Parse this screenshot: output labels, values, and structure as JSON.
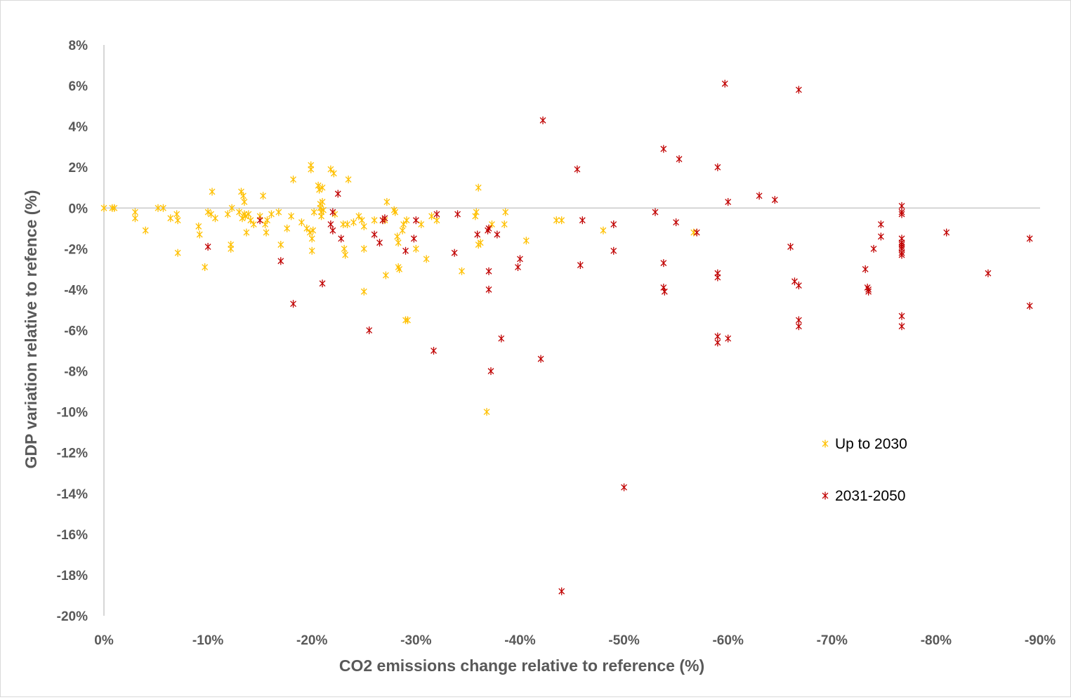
{
  "chart_data": {
    "type": "scatter",
    "xlabel": "CO2 emissions change relative to reference (%)",
    "ylabel": "GDP variation relative to refence (%)",
    "xlim": [
      0,
      -90
    ],
    "ylim": [
      -20,
      8
    ],
    "x_ticks": [
      0,
      -10,
      -20,
      -30,
      -40,
      -50,
      -60,
      -70,
      -80,
      -90
    ],
    "y_ticks": [
      8,
      6,
      4,
      2,
      0,
      -2,
      -4,
      -6,
      -8,
      -10,
      -12,
      -14,
      -16,
      -18,
      -20
    ],
    "x_tick_labels": [
      "0%",
      "-10%",
      "-20%",
      "-30%",
      "-40%",
      "-50%",
      "-60%",
      "-70%",
      "-80%",
      "-90%"
    ],
    "y_tick_labels": [
      "8%",
      "6%",
      "4%",
      "2%",
      "0%",
      "-2%",
      "-4%",
      "-6%",
      "-8%",
      "-10%",
      "-12%",
      "-14%",
      "-16%",
      "-18%",
      "-20%"
    ],
    "grid": false,
    "zero_line": true,
    "legend_position": "right",
    "series": [
      {
        "name": "Up to 2030",
        "color": "#FFC000",
        "marker": "asterisk",
        "points": [
          [
            0,
            0
          ],
          [
            0.8,
            0
          ],
          [
            1,
            0
          ],
          [
            3,
            -0.2
          ],
          [
            3,
            -0.5
          ],
          [
            4,
            -1.1
          ],
          [
            5.2,
            0
          ],
          [
            5.7,
            0
          ],
          [
            6.4,
            -0.5
          ],
          [
            7,
            -0.3
          ],
          [
            7.1,
            -0.6
          ],
          [
            7.1,
            -2.2
          ],
          [
            9.1,
            -0.9
          ],
          [
            9.2,
            -1.3
          ],
          [
            9.7,
            -2.9
          ],
          [
            10,
            -0.2
          ],
          [
            10.3,
            -0.3
          ],
          [
            10.4,
            0.8
          ],
          [
            10.7,
            -0.5
          ],
          [
            11.9,
            -0.3
          ],
          [
            12.2,
            -1.8
          ],
          [
            12.2,
            -2
          ],
          [
            12.3,
            0
          ],
          [
            13,
            -0.2
          ],
          [
            13.2,
            0.8
          ],
          [
            13.3,
            -0.5
          ],
          [
            13.4,
            0.6
          ],
          [
            13.5,
            0.3
          ],
          [
            13.5,
            -0.3
          ],
          [
            13.6,
            -0.4
          ],
          [
            13.7,
            -1.2
          ],
          [
            13.9,
            -0.3
          ],
          [
            14.1,
            -0.6
          ],
          [
            14.4,
            -0.8
          ],
          [
            15,
            -0.4
          ],
          [
            15.3,
            0.6
          ],
          [
            15.5,
            -0.8
          ],
          [
            15.6,
            -1.2
          ],
          [
            15.7,
            -0.6
          ],
          [
            16.1,
            -0.3
          ],
          [
            16.8,
            -0.2
          ],
          [
            17,
            -1.8
          ],
          [
            17.6,
            -1
          ],
          [
            18,
            -0.4
          ],
          [
            18.2,
            1.4
          ],
          [
            19,
            -0.7
          ],
          [
            19.5,
            -1
          ],
          [
            19.8,
            -1.2
          ],
          [
            19.9,
            2.1
          ],
          [
            19.9,
            1.9
          ],
          [
            20,
            -2.1
          ],
          [
            20,
            -1.5
          ],
          [
            20.1,
            -1.1
          ],
          [
            20.2,
            -0.2
          ],
          [
            20.6,
            1.1
          ],
          [
            20.7,
            0.9
          ],
          [
            20.8,
            0.2
          ],
          [
            20.8,
            0
          ],
          [
            20.9,
            -0.2
          ],
          [
            20.9,
            -0.4
          ],
          [
            21,
            1
          ],
          [
            21,
            0.3
          ],
          [
            21.1,
            -0.1
          ],
          [
            21.8,
            1.9
          ],
          [
            22.1,
            1.7
          ],
          [
            22.2,
            -0.3
          ],
          [
            23,
            -0.8
          ],
          [
            23.1,
            -2
          ],
          [
            23.2,
            -2.3
          ],
          [
            23.4,
            -0.8
          ],
          [
            23.5,
            1.4
          ],
          [
            24,
            -0.7
          ],
          [
            24.5,
            -0.4
          ],
          [
            24.8,
            -0.6
          ],
          [
            25,
            -0.9
          ],
          [
            25,
            -2
          ],
          [
            25,
            -4.1
          ],
          [
            26,
            -0.6
          ],
          [
            27,
            -0.6
          ],
          [
            27.1,
            -3.3
          ],
          [
            27.2,
            0.3
          ],
          [
            27.9,
            -0.1
          ],
          [
            28,
            -0.2
          ],
          [
            28.2,
            -1.4
          ],
          [
            28.3,
            -1.7
          ],
          [
            28.3,
            -2.9
          ],
          [
            28.4,
            -3
          ],
          [
            28.7,
            -1.1
          ],
          [
            28.8,
            -0.8
          ],
          [
            29,
            -5.5
          ],
          [
            29.1,
            -0.6
          ],
          [
            29.2,
            -5.5
          ],
          [
            30,
            -2
          ],
          [
            30.5,
            -0.8
          ],
          [
            31,
            -2.5
          ],
          [
            31.5,
            -0.4
          ],
          [
            32,
            -0.6
          ],
          [
            34.4,
            -3.1
          ],
          [
            35.7,
            -0.4
          ],
          [
            35.8,
            -0.2
          ],
          [
            36,
            -1.8
          ],
          [
            36,
            1
          ],
          [
            36.2,
            -1.7
          ],
          [
            36.8,
            -10
          ],
          [
            37.3,
            -0.8
          ],
          [
            38.5,
            -0.8
          ],
          [
            38.6,
            -0.2
          ],
          [
            40.6,
            -1.6
          ],
          [
            43.5,
            -0.6
          ],
          [
            44,
            -0.6
          ],
          [
            48,
            -1.1
          ],
          [
            56.7,
            -1.2
          ]
        ]
      },
      {
        "name": "2031-2050",
        "color": "#C00000",
        "marker": "asterisk",
        "points": [
          [
            15,
            -0.6
          ],
          [
            10,
            -1.9
          ],
          [
            17,
            -2.6
          ],
          [
            18.2,
            -4.7
          ],
          [
            21,
            -3.7
          ],
          [
            21.8,
            -0.8
          ],
          [
            22,
            -0.2
          ],
          [
            22,
            -1.1
          ],
          [
            22.5,
            0.7
          ],
          [
            22.8,
            -1.5
          ],
          [
            25.5,
            -6
          ],
          [
            26,
            -1.3
          ],
          [
            26.5,
            -1.7
          ],
          [
            26.8,
            -0.6
          ],
          [
            27,
            -0.5
          ],
          [
            29,
            -2.1
          ],
          [
            29.8,
            -1.5
          ],
          [
            30,
            -0.6
          ],
          [
            31.7,
            -7
          ],
          [
            32,
            -0.3
          ],
          [
            33.7,
            -2.2
          ],
          [
            34,
            -0.3
          ],
          [
            35.9,
            -1.3
          ],
          [
            36.9,
            -1.1
          ],
          [
            37,
            -1
          ],
          [
            37,
            -3.1
          ],
          [
            37,
            -4
          ],
          [
            37.2,
            -8
          ],
          [
            37.8,
            -1.3
          ],
          [
            38.2,
            -6.4
          ],
          [
            39.8,
            -2.9
          ],
          [
            40,
            -2.5
          ],
          [
            42,
            -7.4
          ],
          [
            42.2,
            4.3
          ],
          [
            44,
            -18.8
          ],
          [
            45.5,
            1.9
          ],
          [
            45.8,
            -2.8
          ],
          [
            46,
            -0.6
          ],
          [
            49,
            -0.8
          ],
          [
            49,
            -2.1
          ],
          [
            50,
            -13.7
          ],
          [
            53,
            -0.2
          ],
          [
            53.8,
            2.9
          ],
          [
            53.8,
            -2.7
          ],
          [
            53.8,
            -3.9
          ],
          [
            53.9,
            -4.1
          ],
          [
            55,
            -0.7
          ],
          [
            55.3,
            2.4
          ],
          [
            57,
            -1.2
          ],
          [
            59,
            2
          ],
          [
            59,
            -3.2
          ],
          [
            59,
            -3.4
          ],
          [
            59,
            -6.3
          ],
          [
            59,
            -6.6
          ],
          [
            59.7,
            6.1
          ],
          [
            60,
            0.3
          ],
          [
            60,
            -6.4
          ],
          [
            63,
            0.6
          ],
          [
            64.5,
            0.4
          ],
          [
            66,
            -1.9
          ],
          [
            66.4,
            -3.6
          ],
          [
            66.8,
            5.8
          ],
          [
            66.8,
            -3.8
          ],
          [
            66.8,
            -5.5
          ],
          [
            66.8,
            -5.8
          ],
          [
            73.2,
            -3
          ],
          [
            73.4,
            -3.9
          ],
          [
            73.5,
            -4.1
          ],
          [
            73.5,
            -4
          ],
          [
            74,
            -2
          ],
          [
            74.7,
            -1.4
          ],
          [
            74.7,
            -0.8
          ],
          [
            76.7,
            0.1
          ],
          [
            76.7,
            -0.2
          ],
          [
            76.7,
            -0.3
          ],
          [
            76.7,
            -1.5
          ],
          [
            76.7,
            -1.7
          ],
          [
            76.7,
            -1.8
          ],
          [
            76.7,
            -1.9
          ],
          [
            76.7,
            -2
          ],
          [
            76.7,
            -2.2
          ],
          [
            76.7,
            -2.3
          ],
          [
            76.7,
            -5.3
          ],
          [
            76.7,
            -5.8
          ],
          [
            81,
            -1.2
          ],
          [
            85,
            -3.2
          ],
          [
            89,
            -1.5
          ],
          [
            89,
            -4.8
          ]
        ]
      }
    ]
  }
}
